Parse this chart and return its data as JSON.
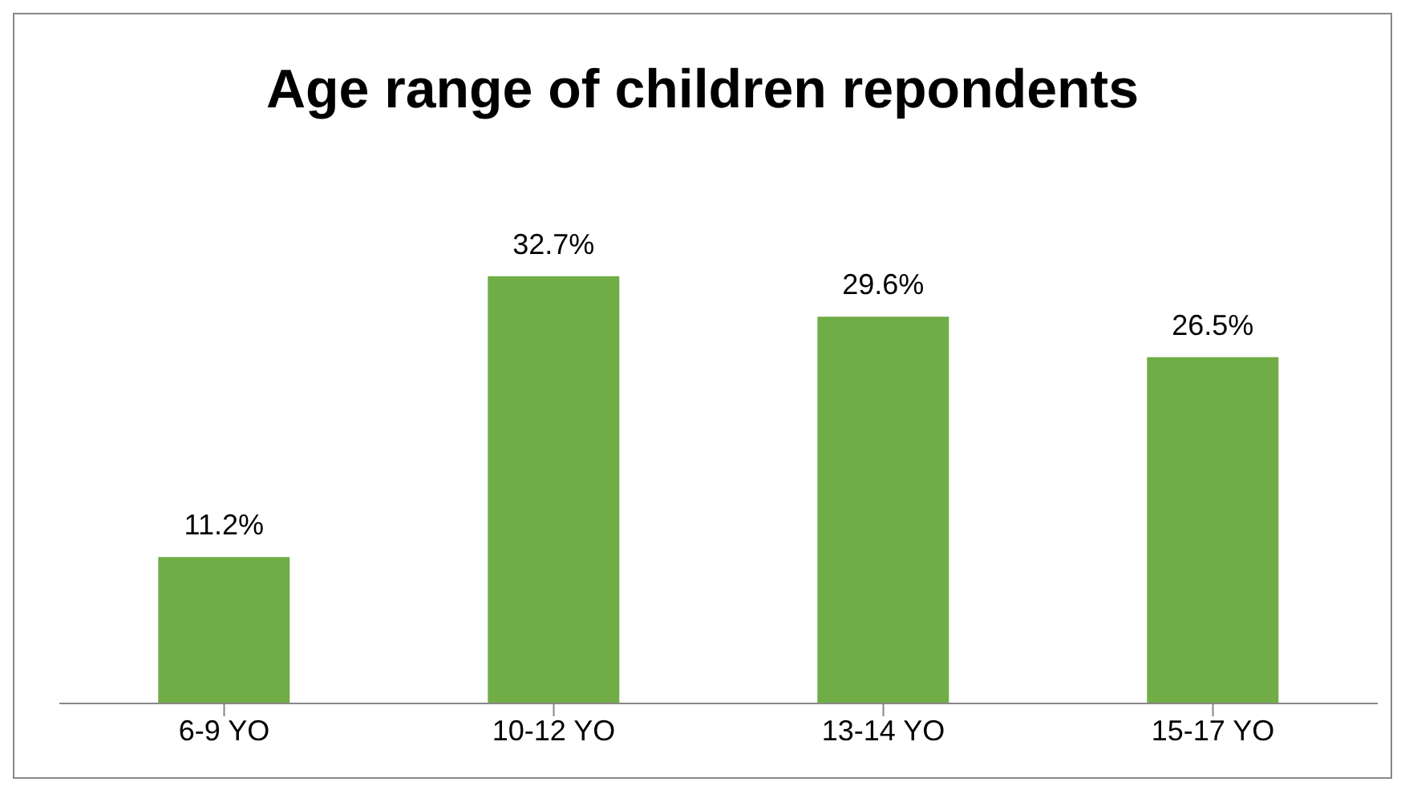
{
  "chart_data": {
    "type": "bar",
    "title": "Age range of children repondents",
    "categories": [
      "6-9 YO",
      "10-12 YO",
      "13-14 YO",
      "15-17 YO"
    ],
    "values": [
      11.2,
      32.7,
      29.6,
      26.5
    ],
    "value_labels": [
      "11.2%",
      "32.7%",
      "29.6%",
      "26.5%"
    ],
    "color": "#70ad47",
    "grid": false,
    "legend": false
  }
}
